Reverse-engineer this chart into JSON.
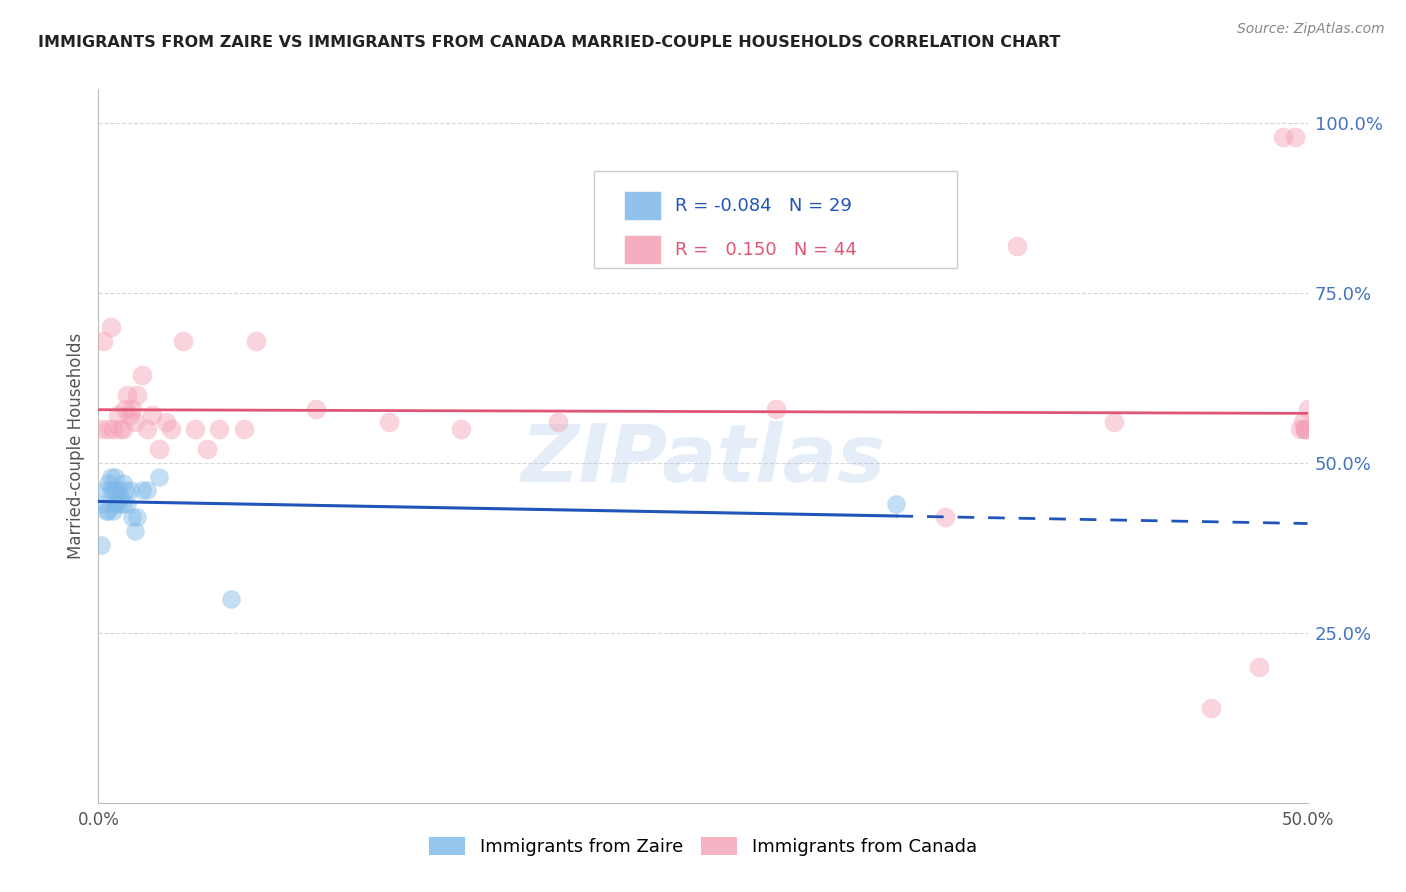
{
  "title": "IMMIGRANTS FROM ZAIRE VS IMMIGRANTS FROM CANADA MARRIED-COUPLE HOUSEHOLDS CORRELATION CHART",
  "source": "Source: ZipAtlas.com",
  "ylabel": "Married-couple Households",
  "x_tick_labels": [
    "0.0%",
    "",
    "",
    "",
    "",
    "50.0%"
  ],
  "x_tick_values": [
    0.0,
    0.1,
    0.2,
    0.3,
    0.4,
    0.5
  ],
  "y_tick_labels_right": [
    "100.0%",
    "75.0%",
    "50.0%",
    "25.0%"
  ],
  "y_tick_values_right": [
    1.0,
    0.75,
    0.5,
    0.25
  ],
  "xlim": [
    0.0,
    0.5
  ],
  "ylim": [
    0.0,
    1.05
  ],
  "zaire_color": "#7db8e8",
  "canada_color": "#f4a0b5",
  "zaire_line_color": "#2255bb",
  "canada_line_color": "#e05575",
  "title_color": "#222222",
  "right_axis_color": "#4472c4",
  "watermark": "ZIPatlas",
  "zaire_x": [
    0.001,
    0.002,
    0.003,
    0.003,
    0.004,
    0.004,
    0.005,
    0.005,
    0.006,
    0.006,
    0.007,
    0.007,
    0.007,
    0.008,
    0.008,
    0.009,
    0.01,
    0.01,
    0.011,
    0.012,
    0.013,
    0.014,
    0.015,
    0.016,
    0.018,
    0.02,
    0.025,
    0.055,
    0.33
  ],
  "zaire_y": [
    0.38,
    0.44,
    0.43,
    0.46,
    0.43,
    0.47,
    0.46,
    0.48,
    0.43,
    0.46,
    0.44,
    0.46,
    0.48,
    0.44,
    0.46,
    0.45,
    0.44,
    0.47,
    0.46,
    0.44,
    0.46,
    0.42,
    0.4,
    0.42,
    0.46,
    0.46,
    0.48,
    0.3,
    0.44
  ],
  "canada_x": [
    0.001,
    0.002,
    0.004,
    0.005,
    0.006,
    0.008,
    0.009,
    0.01,
    0.011,
    0.012,
    0.013,
    0.014,
    0.015,
    0.016,
    0.018,
    0.02,
    0.022,
    0.025,
    0.028,
    0.03,
    0.035,
    0.04,
    0.045,
    0.05,
    0.06,
    0.065,
    0.09,
    0.12,
    0.15,
    0.19,
    0.28,
    0.35,
    0.38,
    0.42,
    0.46,
    0.48,
    0.49,
    0.495,
    0.497,
    0.498,
    0.499,
    0.499,
    0.499,
    0.5
  ],
  "canada_y": [
    0.55,
    0.68,
    0.55,
    0.7,
    0.55,
    0.57,
    0.55,
    0.55,
    0.58,
    0.6,
    0.57,
    0.58,
    0.56,
    0.6,
    0.63,
    0.55,
    0.57,
    0.52,
    0.56,
    0.55,
    0.68,
    0.55,
    0.52,
    0.55,
    0.55,
    0.68,
    0.58,
    0.56,
    0.55,
    0.56,
    0.58,
    0.42,
    0.82,
    0.56,
    0.14,
    0.2,
    0.98,
    0.98,
    0.55,
    0.56,
    0.55,
    0.55,
    0.55,
    0.58
  ],
  "dot_size_zaire": 180,
  "dot_size_canada": 200,
  "dot_alpha": 0.45,
  "background_color": "#ffffff",
  "grid_color": "#cccccc",
  "grid_style": "--",
  "grid_linewidth": 0.8,
  "grid_alpha": 0.8
}
